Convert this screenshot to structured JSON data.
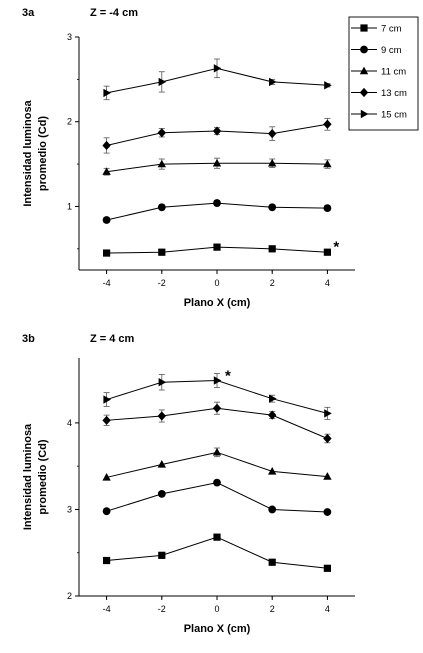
{
  "chart_data": [
    {
      "type": "line",
      "panel_label": "3a",
      "title": "Z = -4 cm",
      "xlabel": "Plano X (cm)",
      "ylabel": "Intensidad luminosa promedio (Cd)",
      "ylabel_lines": [
        "Intensidad luminosa",
        "promedio (Cd)"
      ],
      "x": [
        -4,
        -2,
        0,
        2,
        4
      ],
      "xlim": [
        -5,
        5
      ],
      "ylim": [
        0.25,
        3
      ],
      "x_ticks": [
        -4,
        -2,
        0,
        2,
        4
      ],
      "y_ticks": [
        1,
        2,
        3
      ],
      "legend": true,
      "legend_position": "top-right",
      "annotations": [
        {
          "text": "*",
          "x": 4,
          "y": 0.47
        }
      ],
      "series": [
        {
          "name": "7 cm",
          "marker": "square",
          "values": [
            0.45,
            0.46,
            0.52,
            0.5,
            0.46
          ],
          "errors": [
            0.02,
            0.02,
            0.02,
            0.02,
            0.02
          ]
        },
        {
          "name": "9 cm",
          "marker": "circle",
          "values": [
            0.84,
            0.99,
            1.04,
            0.99,
            0.98
          ],
          "errors": [
            0.03,
            0.03,
            0.03,
            0.03,
            0.03
          ]
        },
        {
          "name": "11 cm",
          "marker": "triangle-up",
          "values": [
            1.41,
            1.5,
            1.51,
            1.51,
            1.5
          ],
          "errors": [
            0.04,
            0.06,
            0.06,
            0.05,
            0.05
          ]
        },
        {
          "name": "13 cm",
          "marker": "diamond",
          "values": [
            1.72,
            1.87,
            1.89,
            1.86,
            1.97
          ],
          "errors": [
            0.09,
            0.05,
            0.04,
            0.08,
            0.07
          ]
        },
        {
          "name": "15 cm",
          "marker": "triangle-right",
          "values": [
            2.34,
            2.47,
            2.63,
            2.47,
            2.43
          ],
          "errors": [
            0.08,
            0.12,
            0.11,
            0.03,
            0.02
          ]
        }
      ]
    },
    {
      "type": "line",
      "panel_label": "3b",
      "title": "Z = 4 cm",
      "xlabel": "Plano X (cm)",
      "ylabel": "Intensidad luminosa promedio (Cd)",
      "ylabel_lines": [
        "Intensidad luminosa",
        "promedio (Cd)"
      ],
      "x": [
        -4,
        -2,
        0,
        2,
        4
      ],
      "xlim": [
        -5,
        5
      ],
      "ylim": [
        2,
        4.75
      ],
      "x_ticks": [
        -4,
        -2,
        0,
        2,
        4
      ],
      "y_ticks": [
        2,
        3,
        4
      ],
      "legend": false,
      "annotations": [
        {
          "text": "*",
          "x": 0,
          "y": 4.49
        }
      ],
      "series": [
        {
          "name": "7 cm",
          "marker": "square",
          "values": [
            2.41,
            2.47,
            2.68,
            2.39,
            2.32
          ],
          "errors": [
            0,
            0,
            0,
            0,
            0
          ]
        },
        {
          "name": "9 cm",
          "marker": "circle",
          "values": [
            2.98,
            3.18,
            3.31,
            3.0,
            2.97
          ],
          "errors": [
            0,
            0,
            0,
            0,
            0
          ]
        },
        {
          "name": "11 cm",
          "marker": "triangle-up",
          "values": [
            3.37,
            3.52,
            3.66,
            3.44,
            3.38
          ],
          "errors": [
            0,
            0,
            0.05,
            0,
            0
          ]
        },
        {
          "name": "13 cm",
          "marker": "diamond",
          "values": [
            4.03,
            4.08,
            4.17,
            4.09,
            3.82
          ],
          "errors": [
            0.06,
            0.07,
            0.07,
            0.04,
            0.05
          ]
        },
        {
          "name": "15 cm",
          "marker": "triangle-right",
          "values": [
            4.27,
            4.47,
            4.49,
            4.28,
            4.11
          ],
          "errors": [
            0.08,
            0.09,
            0.08,
            0.04,
            0.07
          ]
        }
      ]
    }
  ]
}
